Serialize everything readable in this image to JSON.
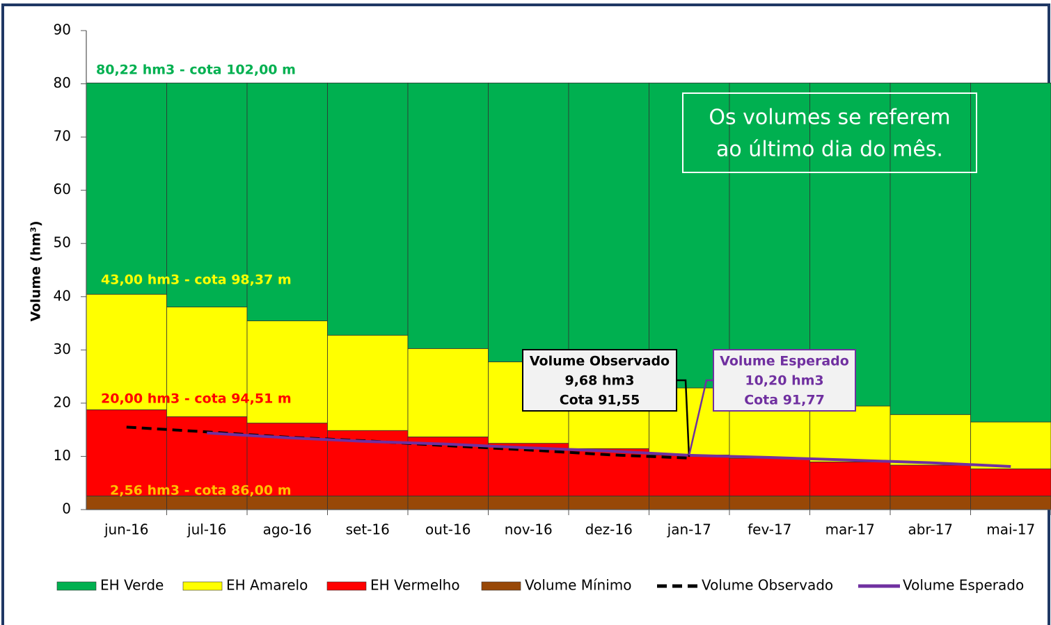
{
  "chart_data": {
    "type": "bar",
    "stacked": true,
    "y_label": "Volume (hm³)",
    "categories": [
      "jun-16",
      "jul-16",
      "ago-16",
      "set-16",
      "out-16",
      "nov-16",
      "dez-16",
      "jan-17",
      "fev-17",
      "mar-17",
      "abr-17",
      "mai-17"
    ],
    "series": [
      {
        "name": "Volume Mínimo",
        "type": "bar",
        "color": "#984807",
        "values": [
          2.56,
          2.56,
          2.56,
          2.56,
          2.56,
          2.56,
          2.56,
          2.56,
          2.56,
          2.56,
          2.56,
          2.56
        ]
      },
      {
        "name": "EH Vermelho",
        "type": "bar",
        "color": "#ff0000",
        "values": [
          16.2,
          14.9,
          13.7,
          12.3,
          11.1,
          9.9,
          8.9,
          7.7,
          7.1,
          6.4,
          5.8,
          5.1
        ]
      },
      {
        "name": "EH Amarelo",
        "type": "bar",
        "color": "#ffff00",
        "values": [
          21.7,
          20.6,
          19.2,
          17.9,
          16.6,
          15.3,
          13.7,
          12.6,
          11.9,
          10.5,
          9.5,
          8.8
        ]
      },
      {
        "name": "EH Verde",
        "type": "bar",
        "color": "#00b050",
        "values": [
          39.7,
          42.1,
          44.7,
          47.4,
          49.9,
          52.4,
          55.0,
          57.3,
          58.6,
          60.7,
          62.3,
          63.7
        ]
      },
      {
        "name": "Volume Observado",
        "type": "line",
        "dash": true,
        "color": "#000000",
        "values": [
          15.5,
          14.6,
          13.6,
          12.9,
          12.0,
          11.2,
          10.3,
          9.68,
          null,
          null,
          null,
          null
        ]
      },
      {
        "name": "Volume Esperado",
        "type": "line",
        "dash": false,
        "color": "#7030a0",
        "values": [
          null,
          14.4,
          13.5,
          12.8,
          12.3,
          11.6,
          11.0,
          10.2,
          9.8,
          9.3,
          8.8,
          8.1
        ]
      }
    ],
    "legend_order": [
      3,
      2,
      1,
      0,
      4,
      5
    ],
    "ylim": [
      0,
      90
    ],
    "yticks": [
      0,
      10,
      20,
      30,
      40,
      50,
      60,
      70,
      80,
      90
    ],
    "annotations": [
      {
        "text": "80,22 hm3 - cota 102,00 m",
        "color": "#00b050"
      },
      {
        "text": "43,00 hm3 - cota 98,37 m",
        "color": "#ffff00"
      },
      {
        "text": "20,00 hm3 - cota 94,51 m",
        "color": "#ff0000"
      },
      {
        "text": "2,56 hm3 - cota 86,00 m",
        "color": "#ffc000"
      }
    ],
    "callouts": [
      {
        "lines": [
          "Volume Observado",
          "9,68 hm3",
          "Cota 91,55"
        ],
        "color": "#000000"
      },
      {
        "lines": [
          "Volume Esperado",
          "10,20 hm3",
          "Cota 91,77"
        ],
        "color": "#7030a0"
      }
    ],
    "note": [
      "Os volumes se referem",
      "ao último dia do mês."
    ]
  }
}
